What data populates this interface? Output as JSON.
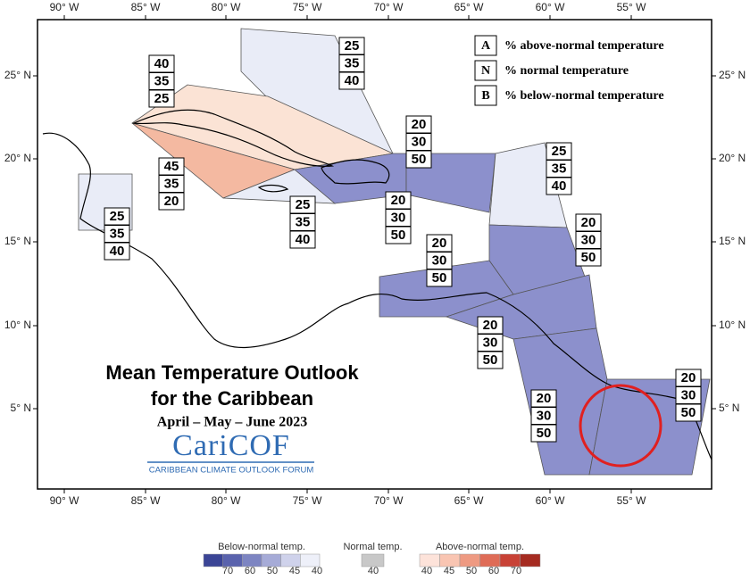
{
  "axes": {
    "x_labels": [
      "90° W",
      "85° W",
      "80° W",
      "75° W",
      "70° W",
      "65° W",
      "60° W",
      "55° W"
    ],
    "y_labels": [
      "25° N",
      "20° N",
      "15° N",
      "10° N",
      "5° N"
    ]
  },
  "legend": [
    {
      "key": "A",
      "text": "% above-normal temperature"
    },
    {
      "key": "N",
      "text": "% normal temperature"
    },
    {
      "key": "B",
      "text": "% below-normal temperature"
    }
  ],
  "title": {
    "line1": "Mean Temperature Outlook",
    "line2": "for the Caribbean",
    "period": "April – May – June 2023"
  },
  "logo": {
    "name": "CariCOF",
    "tagline": "CARIBBEAN CLIMATE OUTLOOK FORUM"
  },
  "regions": [
    {
      "above": 25,
      "normal": 35,
      "below": 40
    },
    {
      "above": 40,
      "normal": 35,
      "below": 25
    },
    {
      "above": 45,
      "normal": 35,
      "below": 20
    },
    {
      "above": 25,
      "normal": 35,
      "below": 40
    },
    {
      "above": 20,
      "normal": 30,
      "below": 50
    },
    {
      "above": 20,
      "normal": 30,
      "below": 50
    },
    {
      "above": 25,
      "normal": 35,
      "below": 40
    },
    {
      "above": 20,
      "normal": 30,
      "below": 50
    },
    {
      "above": 20,
      "normal": 30,
      "below": 50
    },
    {
      "above": 20,
      "normal": 30,
      "below": 50
    },
    {
      "above": 20,
      "normal": 30,
      "below": 50
    },
    {
      "above": 20,
      "normal": 30,
      "below": 50
    },
    {
      "above": 25,
      "normal": 35,
      "below": 40
    }
  ],
  "colorbar": {
    "below": {
      "label": "Below-normal temp.",
      "ticks": [
        70,
        60,
        50,
        45,
        40
      ]
    },
    "normal": {
      "label": "Normal temp.",
      "ticks": [
        40
      ]
    },
    "above": {
      "label": "Above-normal temp.",
      "ticks": [
        40,
        45,
        50,
        60,
        70
      ]
    }
  }
}
